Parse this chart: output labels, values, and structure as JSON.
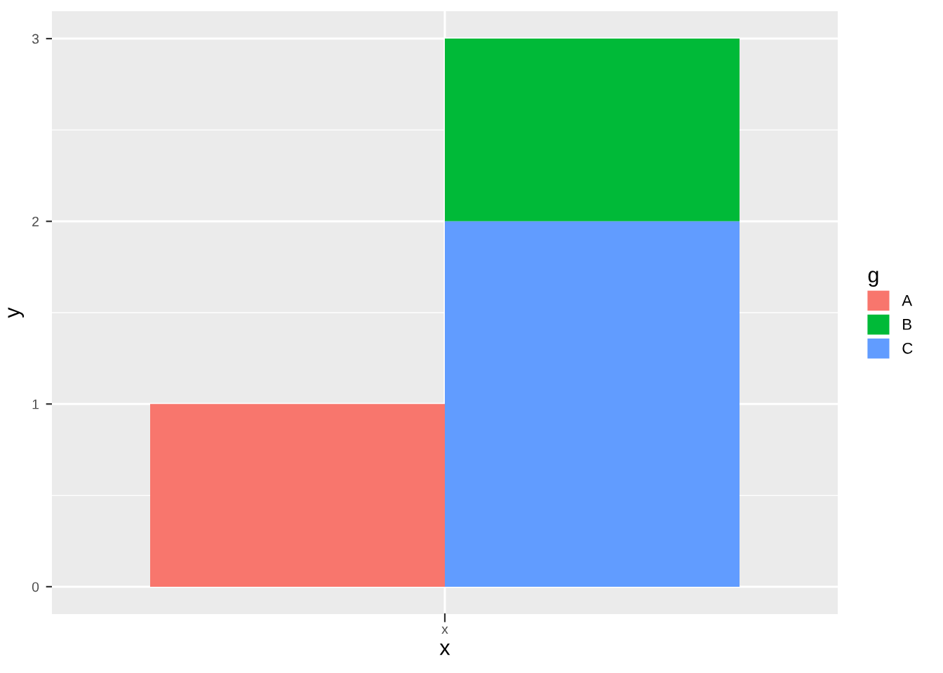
{
  "chart_data": {
    "type": "bar",
    "xlabel": "x",
    "ylabel": "y",
    "legend_title": "g",
    "categories": [
      null,
      null
    ],
    "ylim": [
      -0.15,
      3.15
    ],
    "yticks": [
      0,
      1,
      2,
      3
    ],
    "series": [
      {
        "name": "A",
        "color": "#f8766d",
        "values": [
          1,
          null
        ],
        "base": [
          0,
          null
        ]
      },
      {
        "name": "B",
        "color": "#00ba38",
        "values": [
          null,
          1
        ],
        "base": [
          null,
          2
        ]
      },
      {
        "name": "C",
        "color": "#619cff",
        "values": [
          null,
          2
        ],
        "base": [
          null,
          0
        ]
      }
    ],
    "annotations": [
      "x"
    ],
    "grid": true,
    "legend": "right"
  }
}
